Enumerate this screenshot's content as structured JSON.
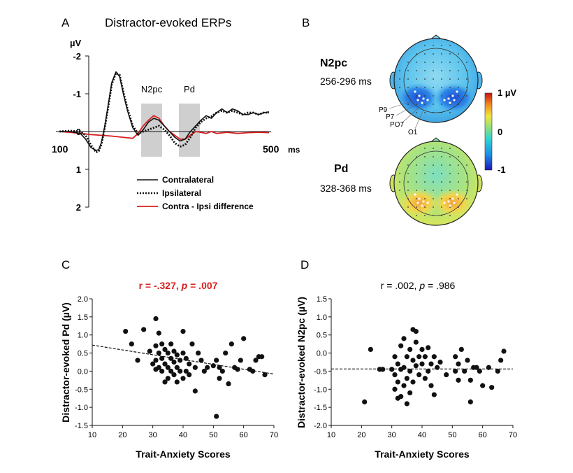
{
  "colors": {
    "red": "#d81e1e",
    "black": "#111111",
    "gray_band": "#cfcfcf"
  },
  "panel_labels": {
    "a": "A",
    "b": "B",
    "c": "C",
    "d": "D"
  },
  "panel_a": {
    "title": "Distractor-evoked ERPs",
    "yunit": "µV",
    "yticks": [
      "-2",
      "-1",
      "0",
      "1",
      "2"
    ],
    "xtick_start": "100",
    "xtick_end": "500",
    "xunit": "ms",
    "bands": [
      {
        "label": "N2pc",
        "start": 256,
        "end": 296
      },
      {
        "label": "Pd",
        "start": 328,
        "end": 368
      }
    ]
  },
  "panel_b": {
    "maps": [
      {
        "name": "N2pc",
        "window": "256-296 ms"
      },
      {
        "name": "Pd",
        "window": "328-368 ms"
      }
    ],
    "electrodes": [
      "P9",
      "P7",
      "PO7",
      "O1"
    ],
    "colorbar": {
      "max": "1",
      "unit": "µV",
      "mid": "0",
      "min": "-1"
    }
  },
  "chart_data": [
    {
      "type": "line",
      "title": "Distractor-evoked ERPs",
      "xlabel": "ms",
      "ylabel": "µV",
      "xlim": [
        100,
        500
      ],
      "ylim": [
        2,
        -2
      ],
      "series": [
        {
          "name": "Contralateral",
          "style": "solid",
          "x": [
            100,
            120,
            140,
            150,
            160,
            170,
            175,
            180,
            186,
            192,
            200,
            208,
            215,
            222,
            230,
            240,
            250,
            260,
            270,
            280,
            290,
            300,
            310,
            320,
            330,
            340,
            350,
            360,
            370,
            380,
            390,
            400,
            410,
            420,
            430,
            440,
            450,
            460,
            470,
            480,
            490,
            500
          ],
          "y": [
            0,
            0,
            0.05,
            0.2,
            0.42,
            0.5,
            0.48,
            0.3,
            -0.1,
            -0.6,
            -1.3,
            -1.58,
            -1.45,
            -1.0,
            -0.55,
            -0.1,
            0.1,
            -0.05,
            -0.25,
            -0.35,
            -0.3,
            -0.15,
            0.0,
            0.15,
            0.25,
            0.2,
            0.0,
            -0.15,
            -0.3,
            -0.42,
            -0.35,
            -0.5,
            -0.6,
            -0.5,
            -0.6,
            -0.55,
            -0.45,
            -0.45,
            -0.5,
            -0.45,
            -0.5,
            -0.52
          ]
        },
        {
          "name": "Ipsilateral",
          "style": "dotted",
          "x": [
            100,
            120,
            140,
            150,
            160,
            170,
            175,
            180,
            186,
            192,
            200,
            208,
            215,
            222,
            230,
            240,
            250,
            260,
            270,
            280,
            290,
            300,
            310,
            320,
            330,
            340,
            350,
            360,
            370,
            380,
            390,
            400,
            410,
            420,
            430,
            440,
            450,
            460,
            470,
            480,
            490,
            500
          ],
          "y": [
            0,
            -0.02,
            0.0,
            0.1,
            0.35,
            0.55,
            0.52,
            0.35,
            -0.05,
            -0.55,
            -1.25,
            -1.55,
            -1.5,
            -1.05,
            -0.6,
            -0.15,
            0.05,
            0.0,
            -0.05,
            -0.1,
            -0.15,
            -0.05,
            0.1,
            0.3,
            0.4,
            0.35,
            0.15,
            -0.1,
            -0.25,
            -0.35,
            -0.4,
            -0.5,
            -0.55,
            -0.5,
            -0.55,
            -0.5,
            -0.45,
            -0.5,
            -0.5,
            -0.45,
            -0.5,
            -0.5
          ]
        },
        {
          "name": "Contra - Ipsi difference",
          "style": "red",
          "x": [
            100,
            120,
            140,
            160,
            180,
            200,
            220,
            240,
            250,
            260,
            270,
            280,
            290,
            300,
            310,
            320,
            330,
            340,
            350,
            360,
            370,
            380,
            390,
            400,
            420,
            440,
            460,
            480,
            500
          ],
          "y": [
            0,
            0.02,
            0.05,
            0.08,
            0.1,
            0.12,
            0.15,
            0.18,
            0.05,
            -0.15,
            -0.3,
            -0.42,
            -0.35,
            -0.15,
            0.0,
            0.1,
            0.2,
            0.2,
            0.1,
            0.0,
            0.02,
            0.05,
            0.0,
            0.05,
            0.02,
            0.05,
            0.03,
            0.02,
            0.03
          ]
        }
      ],
      "annotations": [
        "N2pc",
        "Pd"
      ]
    },
    {
      "type": "scatter",
      "title": "r = -.327, p = .007",
      "title_parts": [
        "r = -.327, ",
        "p",
        " = .007"
      ],
      "xlabel": "Trait-Anxiety Scores",
      "ylabel": "Distractor-evoked Pd (µV)",
      "xlim": [
        10,
        70
      ],
      "ylim": [
        -1.5,
        2.0
      ],
      "xticks": [
        10,
        20,
        30,
        40,
        50,
        60,
        70
      ],
      "yticks": [
        -1.5,
        -1.0,
        -0.5,
        0.0,
        0.5,
        1.0,
        1.5,
        2.0
      ],
      "ytick_labels": [
        "-1.5",
        "-1.0",
        "-0.5",
        "0.0",
        "0.5",
        "1.0",
        "1.5",
        "2.0"
      ],
      "trend": {
        "x": [
          10,
          70
        ],
        "y": [
          0.72,
          -0.08
        ],
        "style": "dashed"
      },
      "points": [
        [
          21,
          1.1
        ],
        [
          23,
          0.75
        ],
        [
          25,
          0.3
        ],
        [
          27,
          1.15
        ],
        [
          29,
          0.55
        ],
        [
          30,
          0.2
        ],
        [
          31,
          1.45
        ],
        [
          31,
          0.7
        ],
        [
          31,
          0.3
        ],
        [
          31,
          0.05
        ],
        [
          32,
          1.05
        ],
        [
          32,
          0.5
        ],
        [
          32,
          0.1
        ],
        [
          33,
          0.75
        ],
        [
          33,
          0.35
        ],
        [
          33,
          0.0
        ],
        [
          34,
          0.6
        ],
        [
          34,
          0.2
        ],
        [
          34,
          -0.3
        ],
        [
          35,
          0.5
        ],
        [
          35,
          0.1
        ],
        [
          35,
          -0.2
        ],
        [
          36,
          0.75
        ],
        [
          36,
          0.35
        ],
        [
          36,
          0.0
        ],
        [
          37,
          0.55
        ],
        [
          37,
          0.25
        ],
        [
          37,
          -0.1
        ],
        [
          38,
          0.45
        ],
        [
          38,
          0.1
        ],
        [
          38,
          -0.3
        ],
        [
          39,
          0.3
        ],
        [
          39,
          0.0
        ],
        [
          40,
          1.1
        ],
        [
          40,
          0.5
        ],
        [
          40,
          -0.2
        ],
        [
          41,
          0.35
        ],
        [
          41,
          0.0
        ],
        [
          42,
          0.2
        ],
        [
          42,
          -0.1
        ],
        [
          43,
          0.75
        ],
        [
          44,
          0.1
        ],
        [
          44,
          -0.55
        ],
        [
          45,
          0.5
        ],
        [
          46,
          0.3
        ],
        [
          47,
          0.0
        ],
        [
          48,
          0.1
        ],
        [
          50,
          0.15
        ],
        [
          51,
          -1.25
        ],
        [
          51,
          0.3
        ],
        [
          52,
          0.1
        ],
        [
          52,
          -0.2
        ],
        [
          53,
          0.0
        ],
        [
          54,
          0.5
        ],
        [
          55,
          -0.35
        ],
        [
          56,
          0.75
        ],
        [
          57,
          0.1
        ],
        [
          58,
          0.05
        ],
        [
          59,
          0.3
        ],
        [
          60,
          0.9
        ],
        [
          62,
          0.05
        ],
        [
          63,
          0.0
        ],
        [
          64,
          0.3
        ],
        [
          65,
          0.4
        ],
        [
          66,
          0.4
        ],
        [
          67,
          -0.1
        ]
      ]
    },
    {
      "type": "scatter",
      "title": "r = .002, p = .986",
      "title_parts": [
        "r = .002, ",
        "p",
        " = .986"
      ],
      "xlabel": "Trait-Anxiety Scores",
      "ylabel": "Distractor-evoked N2pc (µV)",
      "xlim": [
        10,
        70
      ],
      "ylim": [
        -2.0,
        1.5
      ],
      "xticks": [
        10,
        20,
        30,
        40,
        50,
        60,
        70
      ],
      "yticks": [
        -2.0,
        -1.5,
        -1.0,
        -0.5,
        0.0,
        0.5,
        1.0,
        1.5
      ],
      "ytick_labels": [
        "-2.0",
        "-1.5",
        "-1.0",
        "-0.5",
        "0.0",
        "0.5",
        "1.0",
        "1.5"
      ],
      "trend": {
        "x": [
          10,
          70
        ],
        "y": [
          -0.44,
          -0.44
        ],
        "style": "dashed"
      },
      "points": [
        [
          21,
          -1.35
        ],
        [
          23,
          0.1
        ],
        [
          26,
          -0.45
        ],
        [
          27,
          -0.45
        ],
        [
          30,
          -0.45
        ],
        [
          31,
          -0.1
        ],
        [
          31,
          -0.6
        ],
        [
          31,
          -1.0
        ],
        [
          32,
          -0.3
        ],
        [
          32,
          -0.8
        ],
        [
          32,
          -1.25
        ],
        [
          33,
          0.2
        ],
        [
          33,
          -0.45
        ],
        [
          33,
          -1.2
        ],
        [
          34,
          0.4
        ],
        [
          34,
          -0.4
        ],
        [
          34,
          -0.9
        ],
        [
          35,
          -0.1
        ],
        [
          35,
          -0.7
        ],
        [
          35,
          -1.4
        ],
        [
          36,
          0.1
        ],
        [
          36,
          -0.5
        ],
        [
          36,
          -1.1
        ],
        [
          37,
          0.65
        ],
        [
          37,
          -0.2
        ],
        [
          37,
          -0.8
        ],
        [
          38,
          0.6
        ],
        [
          38,
          0.3
        ],
        [
          38,
          -0.35
        ],
        [
          39,
          -0.1
        ],
        [
          39,
          -0.6
        ],
        [
          40,
          0.1
        ],
        [
          40,
          -0.3
        ],
        [
          41,
          -0.1
        ],
        [
          41,
          -0.7
        ],
        [
          42,
          0.15
        ],
        [
          42,
          -0.5
        ],
        [
          43,
          -0.3
        ],
        [
          43,
          -0.9
        ],
        [
          44,
          -0.1
        ],
        [
          44,
          -1.15
        ],
        [
          45,
          -0.4
        ],
        [
          46,
          -0.25
        ],
        [
          48,
          -0.6
        ],
        [
          51,
          -0.1
        ],
        [
          51,
          -0.5
        ],
        [
          52,
          -0.3
        ],
        [
          52,
          -0.75
        ],
        [
          53,
          0.1
        ],
        [
          54,
          -0.5
        ],
        [
          55,
          -0.2
        ],
        [
          56,
          -0.75
        ],
        [
          56,
          -1.35
        ],
        [
          57,
          -0.4
        ],
        [
          58,
          -0.4
        ],
        [
          59,
          -0.5
        ],
        [
          60,
          -0.9
        ],
        [
          62,
          -0.4
        ],
        [
          63,
          -0.95
        ],
        [
          65,
          -0.5
        ],
        [
          66,
          -0.2
        ],
        [
          67,
          0.05
        ]
      ]
    }
  ]
}
